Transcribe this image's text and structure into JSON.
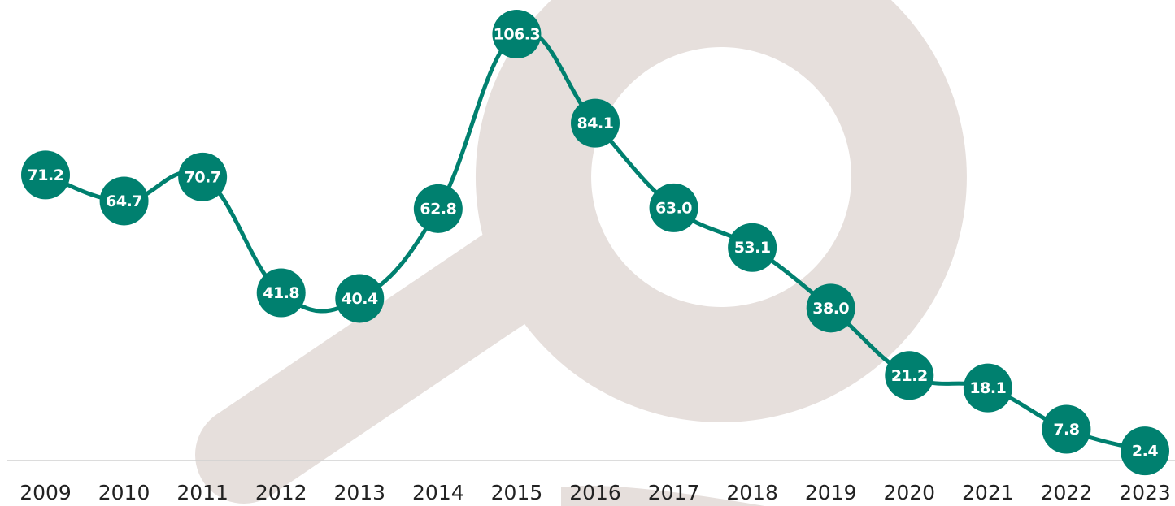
{
  "chart_data": {
    "type": "line",
    "categories": [
      "2009",
      "2010",
      "2011",
      "2012",
      "2013",
      "2014",
      "2015",
      "2016",
      "2017",
      "2018",
      "2019",
      "2020",
      "2021",
      "2022",
      "2023"
    ],
    "values": [
      71.2,
      64.7,
      70.7,
      41.8,
      40.4,
      62.8,
      106.3,
      84.1,
      63.0,
      53.1,
      38.0,
      21.2,
      18.1,
      7.8,
      2.4
    ],
    "value_labels": [
      "71.2",
      "64.7",
      "70.7",
      "41.8",
      "40.4",
      "62.8",
      "106.3",
      "84.1",
      "63.0",
      "53.1",
      "38.0",
      "21.2",
      "18.1",
      "7.8",
      "2.4"
    ],
    "color": "#00806f"
  }
}
